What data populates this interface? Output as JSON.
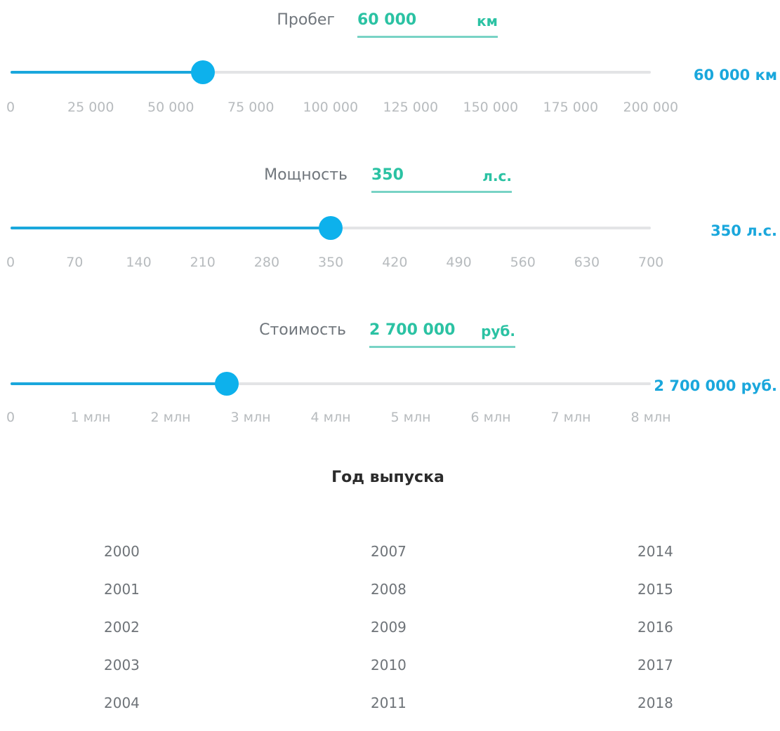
{
  "sliders": [
    {
      "label": "Пробег",
      "input_value": "60 000",
      "input_unit": "км",
      "current_display": "60 000 км",
      "value": 60000,
      "min": 0,
      "max": 200000,
      "ticks": [
        "0",
        "25 000",
        "50 000",
        "75 000",
        "100 000",
        "125 000",
        "150 000",
        "175 000",
        "200 000"
      ]
    },
    {
      "label": "Мощность",
      "input_value": "350",
      "input_unit": "л.с.",
      "current_display": "350 л.с.",
      "value": 350,
      "min": 0,
      "max": 700,
      "ticks": [
        "0",
        "70",
        "140",
        "210",
        "280",
        "350",
        "420",
        "490",
        "560",
        "630",
        "700"
      ]
    },
    {
      "label": "Стоимость",
      "input_value": "2 700 000",
      "input_unit": "руб.",
      "current_display": "2 700 000 руб.",
      "value": 2700000,
      "min": 0,
      "max": 8000000,
      "ticks": [
        "0",
        "1 млн",
        "2 млн",
        "3 млн",
        "4 млн",
        "5 млн",
        "6 млн",
        "7 млн",
        "8 млн"
      ]
    }
  ],
  "year_section": {
    "title": "Год выпуска",
    "columns": [
      [
        "2000",
        "2001",
        "2002",
        "2003",
        "2004"
      ],
      [
        "2007",
        "2008",
        "2009",
        "2010",
        "2011"
      ],
      [
        "2014",
        "2015",
        "2016",
        "2017",
        "2018"
      ]
    ]
  },
  "colors": {
    "accent_blue": "#1aa7dc",
    "thumb_blue": "#0db1ec",
    "input_green": "#2bc2a3",
    "track_grey": "#e3e4e6",
    "tick_grey": "#b7bbbe"
  }
}
